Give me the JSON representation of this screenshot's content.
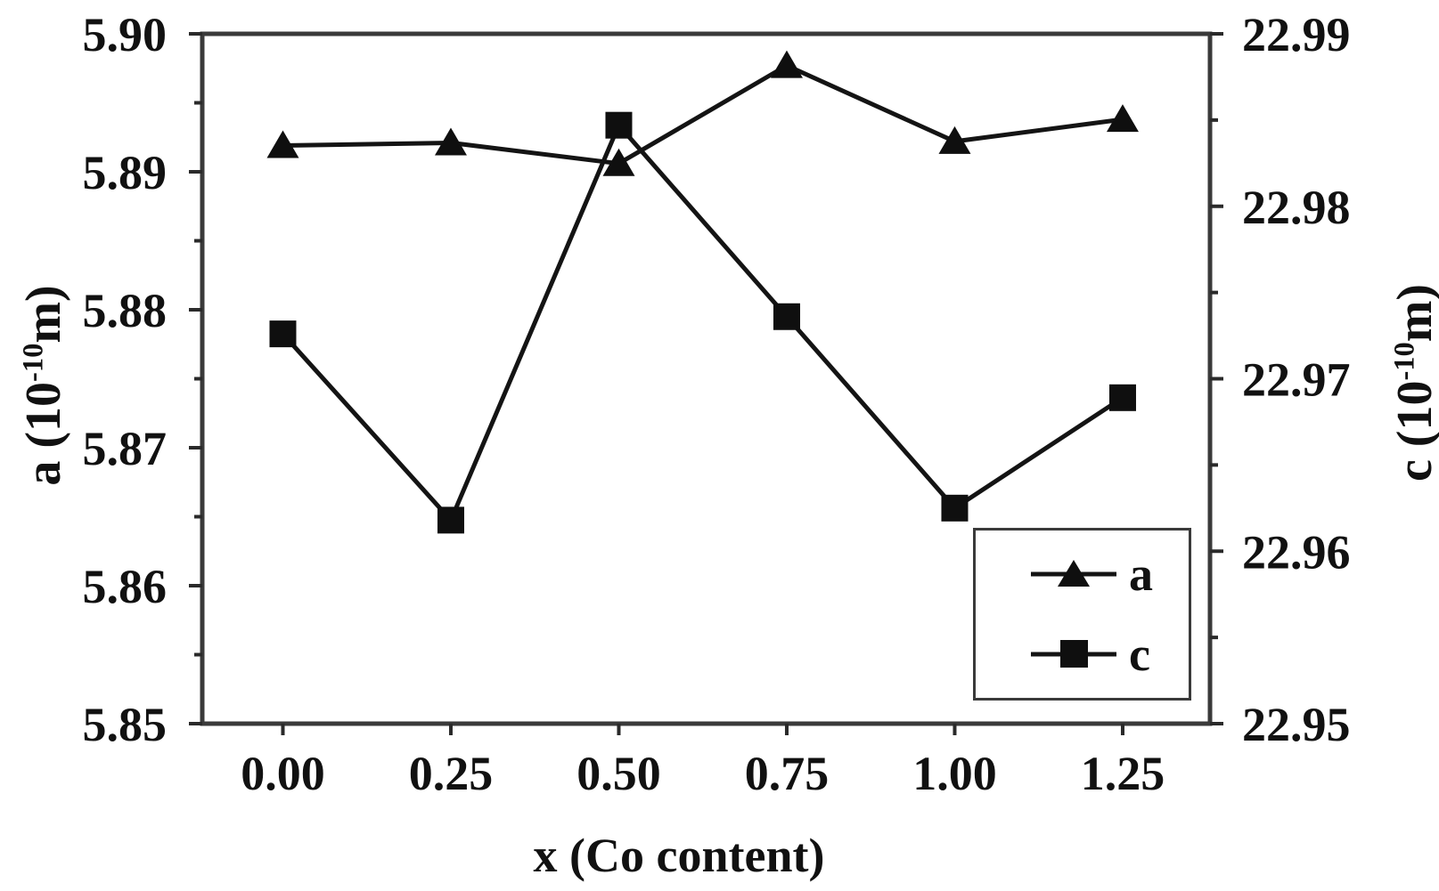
{
  "chart_data": {
    "type": "line",
    "title": "",
    "xlabel": "x (Co content)",
    "x_axis": {
      "lim": [
        -0.12,
        1.38
      ],
      "ticks": [
        0,
        0.25,
        0.5,
        0.75,
        1.0,
        1.25
      ],
      "tick_labels": [
        "0.00",
        "0.25",
        "0.50",
        "0.75",
        "1.00",
        "1.25"
      ]
    },
    "left_axis": {
      "label_prefix": "a (10",
      "label_superscript": "-10",
      "label_suffix": "m)",
      "lim": [
        5.85,
        5.9
      ],
      "ticks": [
        5.9,
        5.89,
        5.88,
        5.87,
        5.86,
        5.85
      ],
      "tick_labels": [
        "5.90",
        "5.89",
        "5.88",
        "5.87",
        "5.86",
        "5.85"
      ],
      "minor_ticks_between": true
    },
    "right_axis": {
      "label_prefix": "c (10",
      "label_superscript": "-10",
      "label_suffix": "m)",
      "lim": [
        22.95,
        22.99
      ],
      "ticks": [
        22.99,
        22.98,
        22.97,
        22.96,
        22.95
      ],
      "tick_labels": [
        "22.99",
        "22.98",
        "22.97",
        "22.96",
        "22.95"
      ],
      "minor_ticks_between": true
    },
    "series": [
      {
        "name": "a",
        "axis": "left",
        "marker": "triangle",
        "x": [
          0,
          0.25,
          0.5,
          0.75,
          1.0,
          1.25
        ],
        "y": [
          5.8919,
          5.8921,
          5.8906,
          5.8977,
          5.8922,
          5.8938
        ]
      },
      {
        "name": "c",
        "axis": "right",
        "marker": "square",
        "x": [
          0,
          0.25,
          0.5,
          0.75,
          1.0,
          1.25
        ],
        "y": [
          22.9726,
          22.9618,
          22.9847,
          22.9736,
          22.9625,
          22.9689
        ]
      }
    ],
    "legend": {
      "position": "bottom-right",
      "entries": [
        {
          "label": "a",
          "marker": "triangle"
        },
        {
          "label": "c",
          "marker": "square"
        }
      ]
    },
    "grid": false,
    "colors": {
      "ink": "#111111",
      "line": "#141414",
      "spine": "#3a3a3a",
      "background": "#ffffff"
    }
  }
}
